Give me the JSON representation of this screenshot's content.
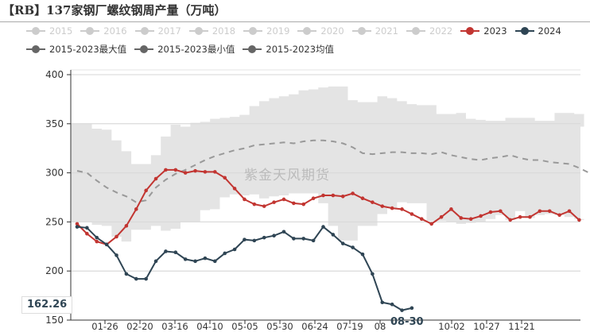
{
  "title": "【RB】137家钢厂螺纹钢周产量（万吨）",
  "watermark": "紫金天风期货",
  "tooltip": {
    "y_value": "162.26",
    "x_value": "08-30"
  },
  "colors": {
    "y2023": "#c23531",
    "y2024": "#2f4554",
    "band": "#e4e4e4",
    "avg": "#999999",
    "legend_off": "#cccccc",
    "legend_stat": "#666666"
  },
  "legend": {
    "row1": [
      {
        "label": "2015",
        "state": "off"
      },
      {
        "label": "2016",
        "state": "off"
      },
      {
        "label": "2017",
        "state": "off"
      },
      {
        "label": "2018",
        "state": "off"
      },
      {
        "label": "2019",
        "state": "off"
      },
      {
        "label": "2020",
        "state": "off"
      },
      {
        "label": "2021",
        "state": "off"
      },
      {
        "label": "2022",
        "state": "off"
      },
      {
        "label": "2023",
        "state": "on"
      },
      {
        "label": "2024",
        "state": "on"
      }
    ],
    "row2": [
      {
        "label": "2015-2023最大值"
      },
      {
        "label": "2015-2023最小值"
      },
      {
        "label": "2015-2023均值"
      }
    ]
  },
  "chart_data": {
    "type": "line",
    "title": "【RB】137家钢厂螺纹钢周产量（万吨）",
    "xlabel": "",
    "ylabel": "",
    "ylim": [
      150,
      400
    ],
    "yticks": [
      150,
      200,
      250,
      300,
      350,
      400
    ],
    "xticks": [
      "01-26",
      "02-20",
      "03-16",
      "04-10",
      "05-05",
      "05-30",
      "06-24",
      "07-19",
      "08",
      "08-30",
      "10-02",
      "10-27",
      "11-21"
    ],
    "grid": true,
    "legend_position": "top",
    "band": {
      "name": "2015-2023 max/min range",
      "max": [
        350,
        350,
        345,
        344,
        333,
        322,
        309,
        309,
        318,
        337,
        349,
        347,
        351,
        352,
        355,
        356,
        357,
        359,
        368,
        373,
        376,
        378,
        380,
        384,
        385,
        387,
        388,
        388,
        374,
        372,
        372,
        378,
        376,
        373,
        370,
        369,
        369,
        360,
        360,
        361,
        355,
        354,
        353,
        353,
        356,
        356,
        356,
        353,
        353,
        361,
        361,
        360,
        347
      ],
      "min": [
        250,
        250,
        247,
        246,
        235,
        230,
        242,
        242,
        246,
        241,
        243,
        250,
        250,
        262,
        263,
        275,
        278,
        277,
        278,
        274,
        276,
        277,
        279,
        279,
        279,
        269,
        246,
        231,
        231,
        246,
        246,
        258,
        264,
        270,
        269,
        269,
        251,
        251,
        250,
        248,
        249,
        250,
        253,
        257,
        252,
        261,
        254,
        257,
        258,
        257,
        255,
        253,
        252
      ]
    },
    "series": [
      {
        "name": "2015-2023均值",
        "style": "dashed",
        "values": [
          302,
          300,
          292,
          285,
          280,
          276,
          270,
          272,
          285,
          293,
          299,
          303,
          308,
          313,
          317,
          320,
          323,
          325,
          328,
          329,
          330,
          331,
          330,
          332,
          333,
          333,
          332,
          330,
          326,
          320,
          319,
          320,
          321,
          321,
          320,
          320,
          319,
          321,
          318,
          316,
          314,
          313,
          315,
          316,
          318,
          315,
          313,
          313,
          311,
          310,
          309,
          305,
          300
        ]
      },
      {
        "name": "2023",
        "values": [
          248,
          238,
          230,
          227,
          235,
          246,
          263,
          282,
          294,
          303,
          303,
          300,
          302,
          301,
          301,
          295,
          284,
          273,
          268,
          266,
          270,
          273,
          269,
          268,
          274,
          277,
          277,
          276,
          279,
          274,
          270,
          266,
          264,
          263,
          258,
          253,
          248,
          255,
          263,
          254,
          253,
          256,
          260,
          261,
          252,
          255,
          255,
          261,
          261,
          257,
          261,
          252
        ]
      },
      {
        "name": "2024",
        "values": [
          245,
          244,
          234,
          227,
          216,
          197,
          192,
          192,
          210,
          220,
          219,
          212,
          210,
          213,
          210,
          218,
          222,
          232,
          231,
          234,
          236,
          240,
          233,
          233,
          231,
          245,
          237,
          228,
          224,
          217,
          197,
          168,
          166,
          160,
          162.26
        ]
      }
    ]
  }
}
